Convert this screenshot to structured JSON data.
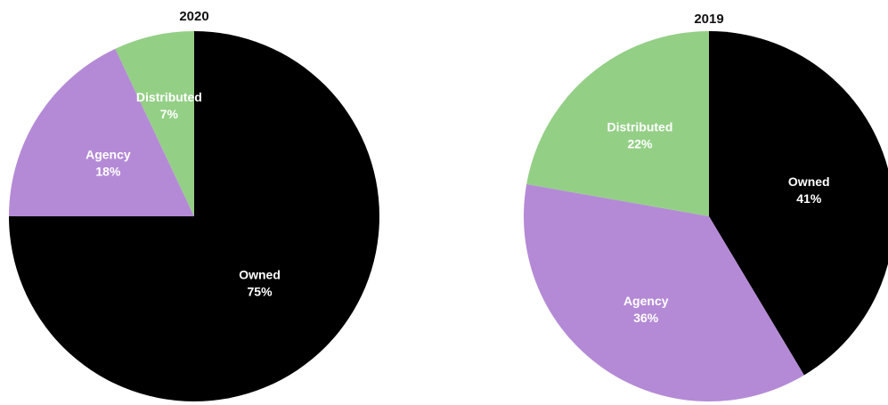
{
  "chart_data": [
    {
      "type": "pie",
      "title": "2020",
      "slices": [
        {
          "label": "Owned",
          "value": 75,
          "value_label": "75%",
          "color": "#000000",
          "label_color": "#ffffff"
        },
        {
          "label": "Agency",
          "value": 18,
          "value_label": "18%",
          "color": "#b48ad6",
          "label_color": "#ffffff"
        },
        {
          "label": "Distributed",
          "value": 7,
          "value_label": "7%",
          "color": "#94cf86",
          "label_color": "#ffffff"
        }
      ],
      "start_angle_deg": 0,
      "direction": "clockwise"
    },
    {
      "type": "pie",
      "title": "2019",
      "slices": [
        {
          "label": "Owned",
          "value": 41,
          "value_label": "41%",
          "color": "#000000",
          "label_color": "#ffffff"
        },
        {
          "label": "Agency",
          "value": 36,
          "value_label": "36%",
          "color": "#b48ad6",
          "label_color": "#ffffff"
        },
        {
          "label": "Distributed",
          "value": 22,
          "value_label": "22%",
          "color": "#94cf86",
          "label_color": "#ffffff"
        }
      ],
      "start_angle_deg": 0,
      "direction": "clockwise"
    }
  ]
}
